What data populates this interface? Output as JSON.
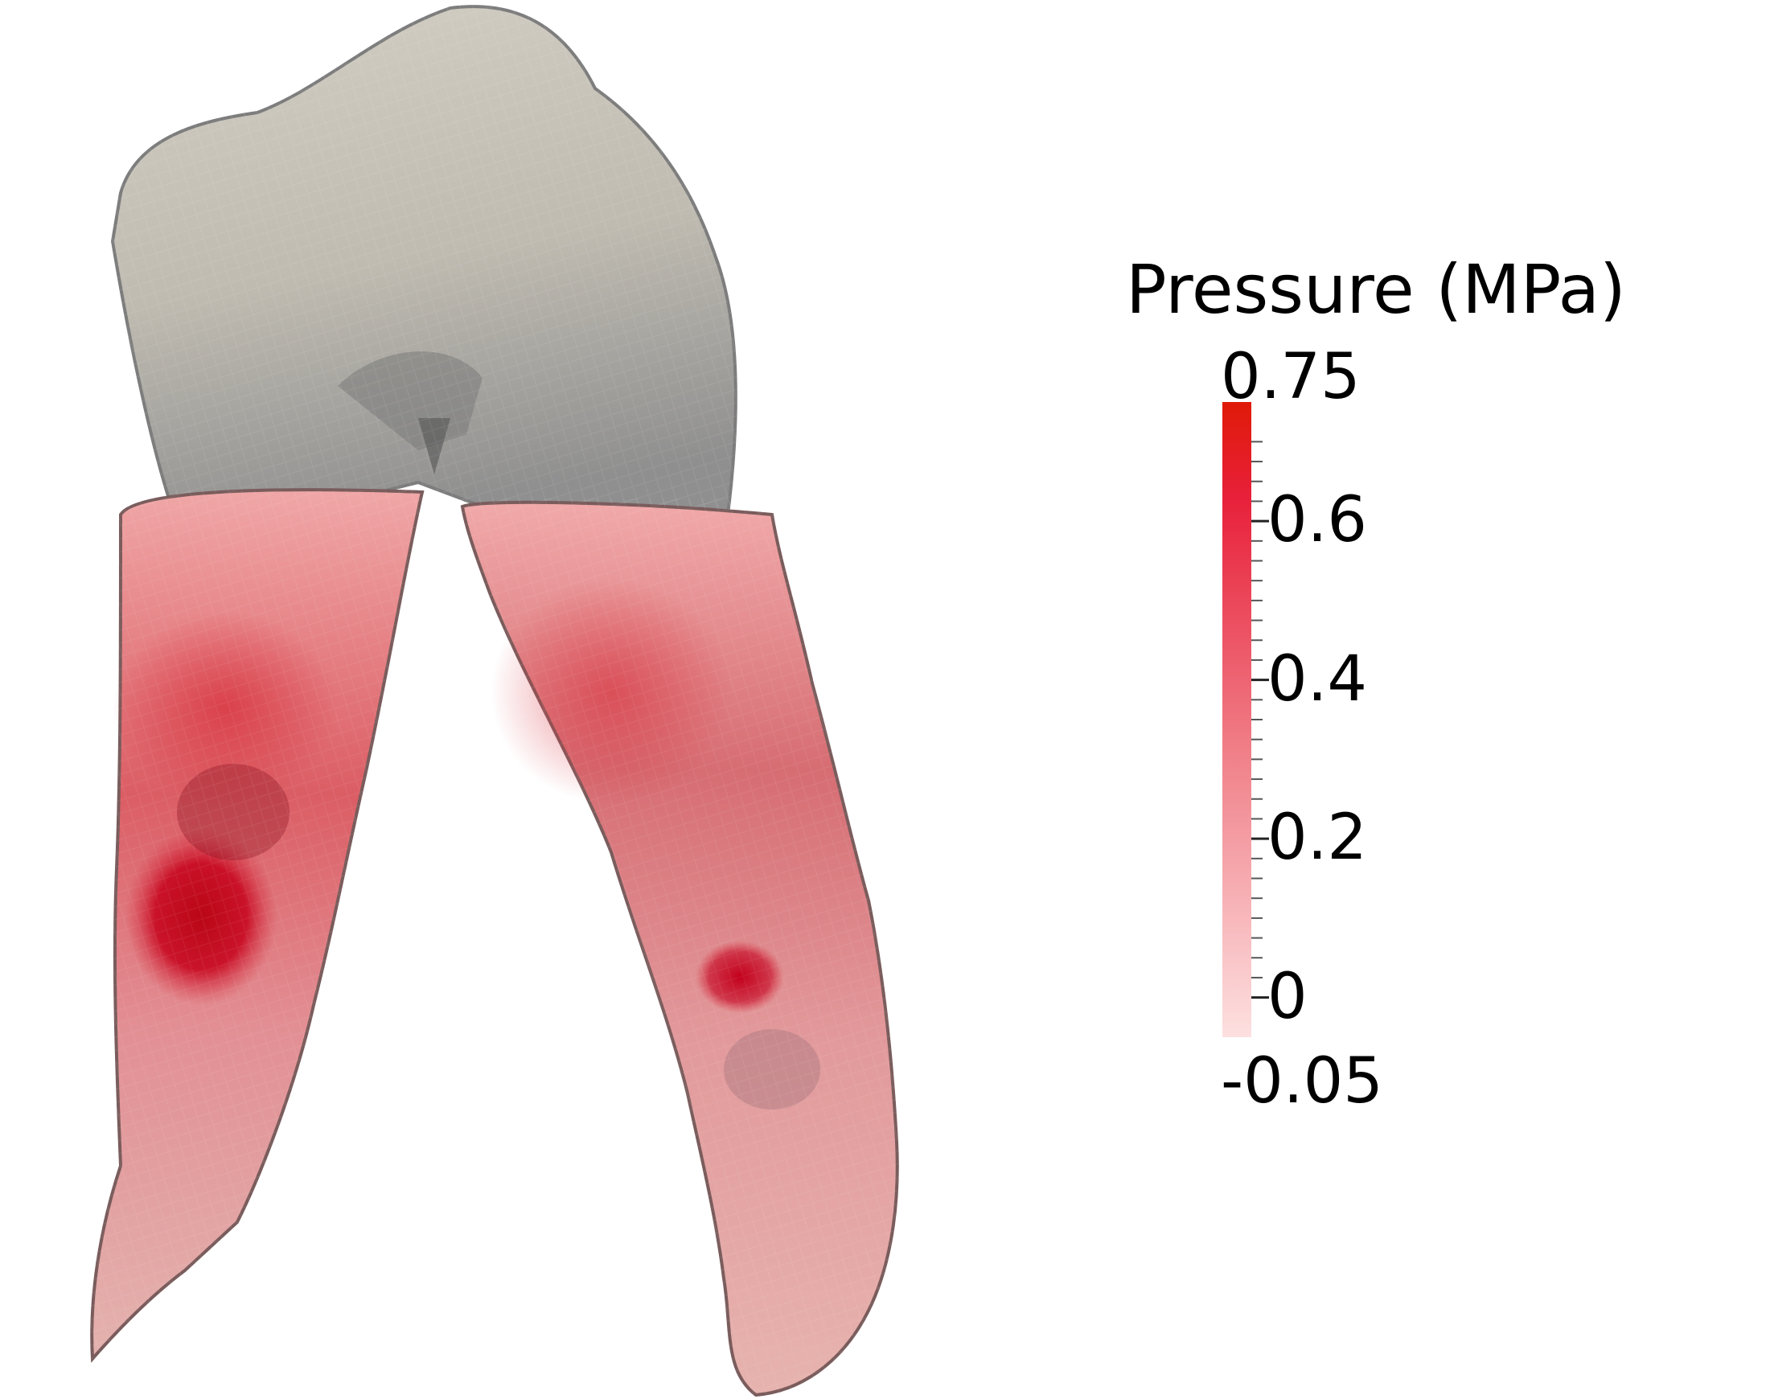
{
  "legend": {
    "title": "Pressure (MPa)",
    "max_label": "0.75",
    "min_label": "-0.05",
    "ticks": [
      {
        "value": 0.6,
        "label": "0.6"
      },
      {
        "value": 0.4,
        "label": "0.4"
      },
      {
        "value": 0.2,
        "label": "0.2"
      },
      {
        "value": 0,
        "label": "0"
      }
    ],
    "range": [
      -0.05,
      0.75
    ],
    "colors": {
      "low": "#fde0e0",
      "mid": "#f07f88",
      "high_mid": "#e8203a",
      "high": "#e01a08"
    }
  },
  "colors": {
    "crown": "#c4c0b6",
    "crown_shadow": "#8c8c8c",
    "root_base": "#e9b0b0",
    "hotspot": "#c40012",
    "edge": "#6b5a5a"
  }
}
